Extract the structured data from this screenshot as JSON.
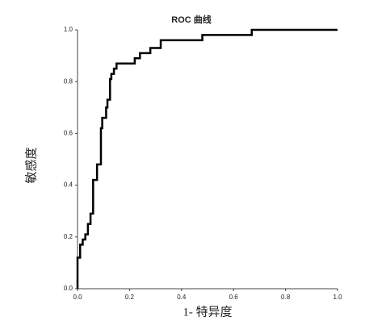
{
  "chart_data": {
    "type": "line",
    "title": "ROC 曲线",
    "x_label": "1- 特异度",
    "y_label": "敏感度",
    "color": "#000000",
    "x": [
      0,
      0,
      0.01,
      0.01,
      0.02,
      0.02,
      0.03,
      0.03,
      0.04,
      0.04,
      0.05,
      0.05,
      0.06,
      0.06,
      0.075,
      0.075,
      0.09,
      0.09,
      0.095,
      0.095,
      0.11,
      0.11,
      0.115,
      0.115,
      0.125,
      0.125,
      0.13,
      0.13,
      0.14,
      0.14,
      0.15,
      0.15,
      0.22,
      0.22,
      0.24,
      0.24,
      0.28,
      0.28,
      0.32,
      0.32,
      0.48,
      0.48,
      0.67,
      0.67,
      1
    ],
    "values": [
      0,
      0.12,
      0.12,
      0.17,
      0.17,
      0.19,
      0.19,
      0.21,
      0.21,
      0.25,
      0.25,
      0.29,
      0.29,
      0.42,
      0.42,
      0.48,
      0.48,
      0.62,
      0.62,
      0.66,
      0.66,
      0.7,
      0.7,
      0.73,
      0.73,
      0.81,
      0.81,
      0.83,
      0.83,
      0.85,
      0.85,
      0.87,
      0.87,
      0.89,
      0.89,
      0.91,
      0.91,
      0.93,
      0.93,
      0.96,
      0.96,
      0.98,
      0.98,
      1,
      1
    ],
    "xlim": [
      0,
      1
    ],
    "ylim": [
      0,
      1
    ],
    "xticks": [
      {
        "value": 0,
        "label": "0.0"
      },
      0.2,
      0.4,
      0.6,
      0.8,
      {
        "value": 1,
        "label": "1.0"
      }
    ],
    "yticks": [
      {
        "value": 0,
        "label": "0.0"
      },
      0.2,
      0.4,
      0.6,
      0.8,
      {
        "value": 1,
        "label": "1.0"
      }
    ]
  }
}
